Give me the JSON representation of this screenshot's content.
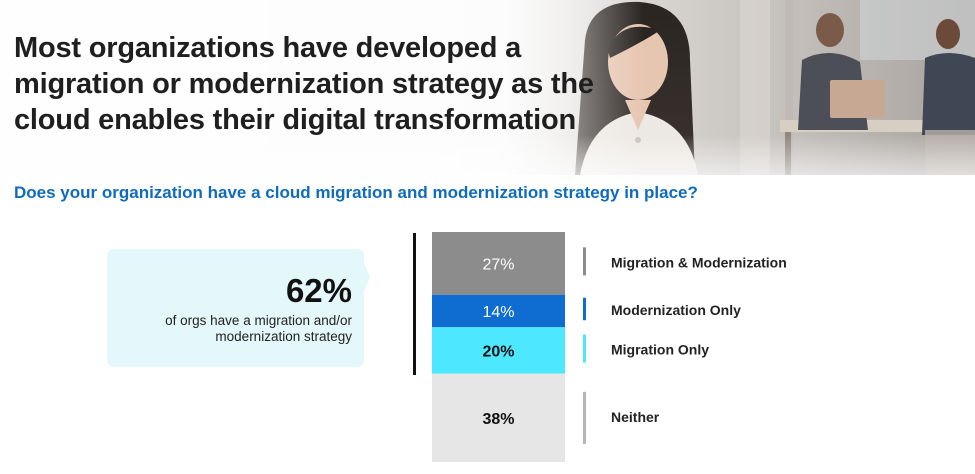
{
  "header": {
    "title": "Most organizations have developed a migration or modernization strategy as the cloud enables their digital transformation"
  },
  "question": "Does your organization have a cloud migration and modernization strategy in place?",
  "callout": {
    "stat": "62%",
    "description": "of orgs have a migration and/or modernization strategy"
  },
  "chart_data": {
    "type": "bar",
    "stacked": true,
    "orientation": "vertical",
    "unit": "%",
    "categories": [
      "Migration & Modernization",
      "Modernization Only",
      "Migration Only",
      "Neither"
    ],
    "values": [
      27,
      14,
      20,
      38
    ],
    "labels": [
      "27%",
      "14%",
      "20%",
      "38%"
    ],
    "colors": [
      "#8c8c8c",
      "#0f6cd0",
      "#4de8ff",
      "#e6e6e6"
    ],
    "label_colors": [
      "#ffffff",
      "#ffffff",
      "#111111",
      "#111111"
    ],
    "legend_marker_colors": [
      "#8c8c8c",
      "#0f6cd0",
      "#4de8ff",
      "#b5b5b5"
    ],
    "legend_placement": "right"
  },
  "colors": {
    "accent": "#0f6cbd",
    "callout_bg": "#e4f7fb"
  }
}
